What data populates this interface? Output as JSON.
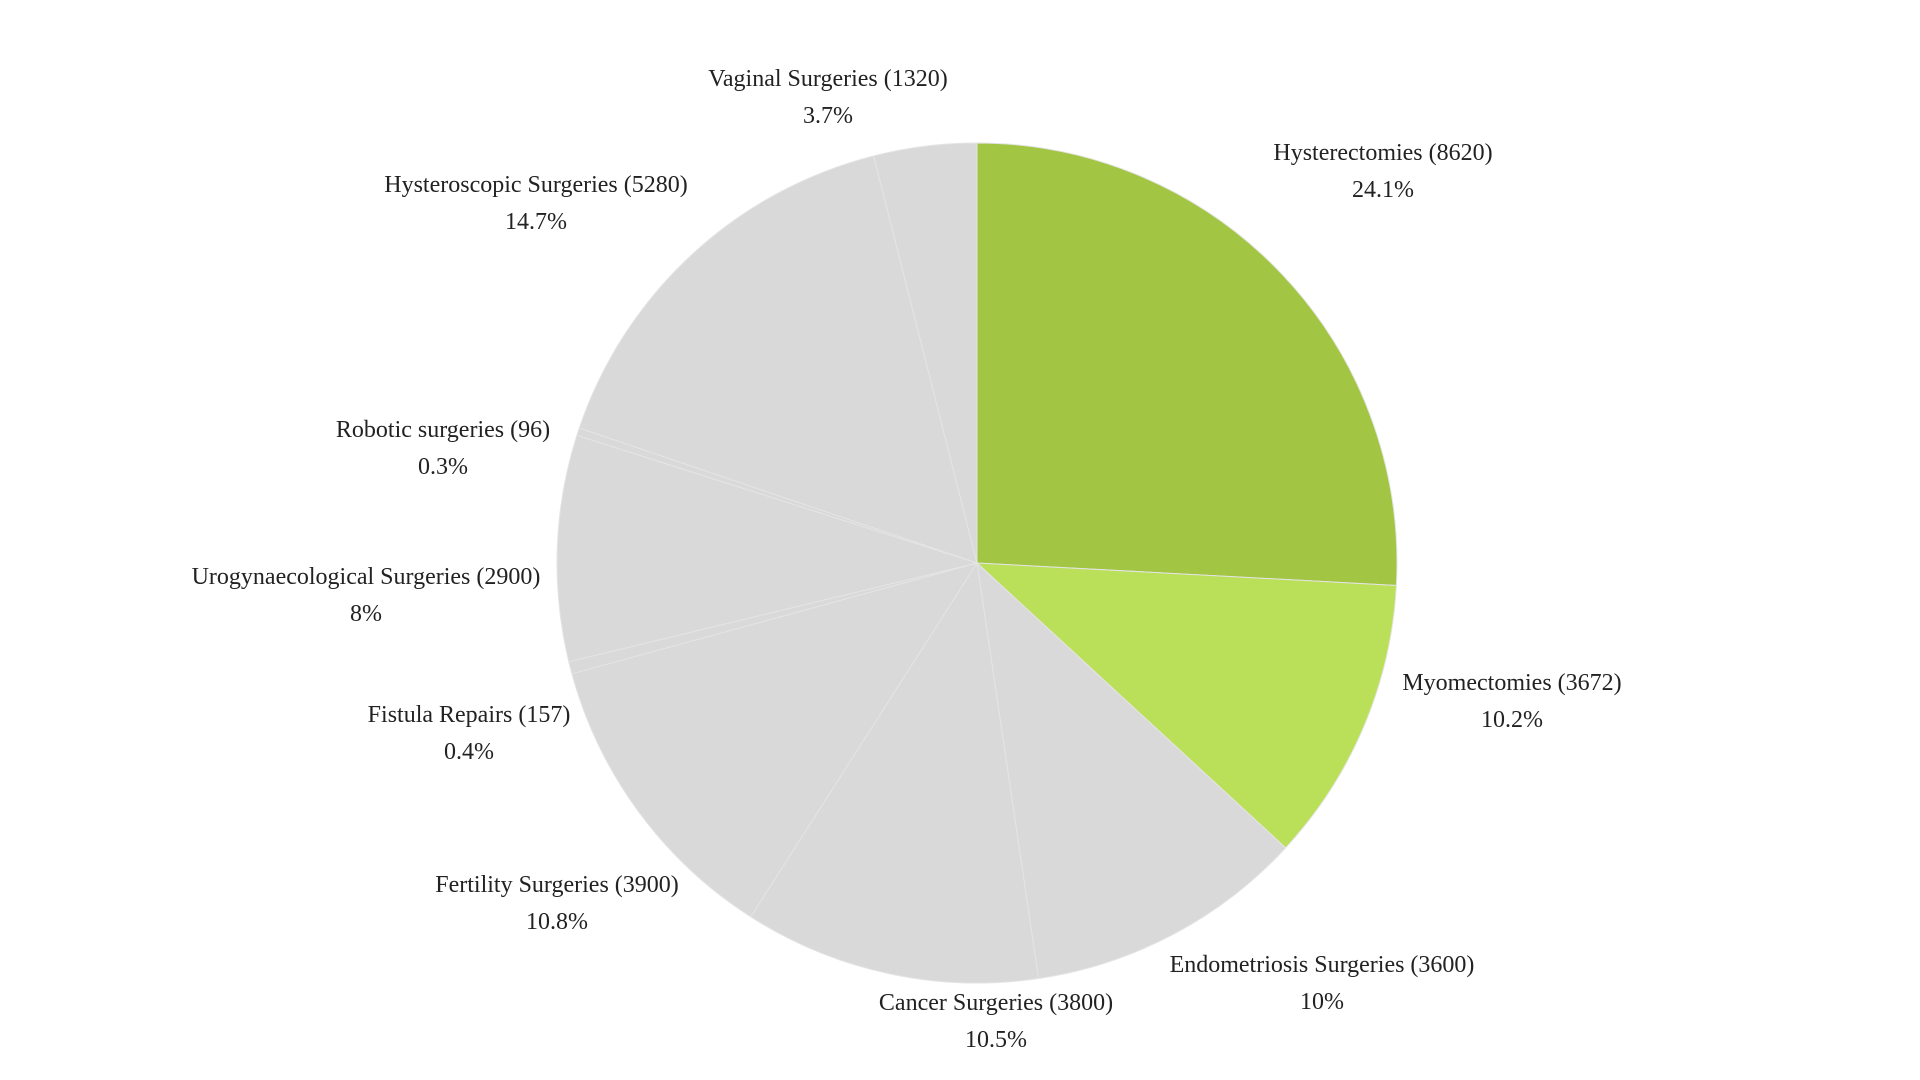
{
  "chart_data": {
    "type": "pie",
    "start_angle_deg": 0,
    "direction": "clockwise",
    "slices": [
      {
        "label": "Hysterectomies",
        "value": 8620,
        "percent": "24.1%",
        "color": "#a2c543"
      },
      {
        "label": "Myomectomies",
        "value": 3672,
        "percent": "10.2%",
        "color": "#badf58"
      },
      {
        "label": "Endometriosis Surgeries",
        "value": 3600,
        "percent": "10%",
        "color": "#d9d9d9"
      },
      {
        "label": "Cancer Surgeries",
        "value": 3800,
        "percent": "10.5%",
        "color": "#d9d9d9"
      },
      {
        "label": "Fertility Surgeries",
        "value": 3900,
        "percent": "10.8%",
        "color": "#d9d9d9"
      },
      {
        "label": "Fistula Repairs",
        "value": 157,
        "percent": "0.4%",
        "color": "#d9d9d9"
      },
      {
        "label": "Urogynaecological Surgeries",
        "value": 2900,
        "percent": "8%",
        "color": "#d9d9d9"
      },
      {
        "label": "Robotic surgeries",
        "value": 96,
        "percent": "0.3%",
        "color": "#d9d9d9"
      },
      {
        "label": "Hysteroscopic Surgeries",
        "value": 5280,
        "percent": "14.7%",
        "color": "#d9d9d9"
      },
      {
        "label": "Vaginal Surgeries",
        "value": 1320,
        "percent": "3.7%",
        "color": "#d9d9d9"
      }
    ]
  }
}
